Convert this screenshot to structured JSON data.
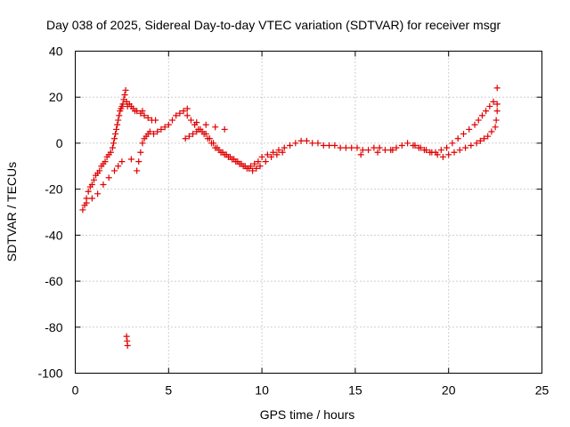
{
  "chart_data": {
    "type": "scatter",
    "title": "Day 038 of 2025, Sidereal Day-to-day VTEC variation (SDTVAR) for receiver msgr",
    "xlabel": "GPS time / hours",
    "ylabel": "SDTVAR / TECUs",
    "xlim": [
      0,
      25
    ],
    "ylim": [
      -100,
      40
    ],
    "xticks": [
      "0",
      "5",
      "10",
      "15",
      "20",
      "25"
    ],
    "yticks": [
      "40",
      "20",
      "0",
      "-20",
      "-40",
      "-60",
      "-80",
      "-100"
    ],
    "grid": true,
    "marker": "+",
    "color": "#e00000",
    "series": [
      {
        "name": "SDTVAR",
        "x": [
          0.4,
          0.5,
          0.6,
          0.7,
          0.8,
          0.9,
          1.0,
          1.1,
          1.2,
          1.3,
          1.4,
          1.5,
          1.6,
          1.7,
          1.8,
          1.9,
          2.0,
          2.05,
          2.1,
          2.15,
          2.2,
          2.25,
          2.3,
          2.35,
          2.4,
          2.45,
          2.5,
          2.55,
          2.6,
          2.65,
          2.7,
          2.75,
          2.8,
          2.9,
          3.0,
          3.1,
          3.2,
          3.3,
          3.4,
          3.5,
          3.6,
          3.7,
          3.8,
          3.9,
          4.0,
          4.2,
          4.4,
          4.6,
          4.8,
          5.0,
          5.2,
          5.4,
          5.6,
          5.8,
          6.0,
          6.2,
          6.4,
          6.6,
          6.8,
          7.0,
          7.2,
          7.4,
          7.6,
          7.8,
          8.0,
          8.2,
          8.4,
          8.6,
          8.8,
          9.0,
          9.2,
          9.4,
          9.6,
          9.8,
          10.0,
          10.3,
          10.6,
          10.9,
          11.2,
          11.5,
          11.8,
          12.1,
          12.4,
          12.7,
          13.0,
          13.3,
          13.6,
          13.9,
          14.2,
          14.5,
          14.8,
          15.1,
          15.4,
          15.7,
          16.0,
          16.3,
          16.6,
          16.9,
          17.2,
          17.5,
          17.8,
          18.1,
          18.4,
          18.7,
          19.0,
          19.3,
          19.6,
          19.9,
          20.2,
          20.5,
          20.8,
          21.1,
          21.4,
          21.6,
          21.8,
          22.0,
          22.2,
          22.4,
          22.6,
          5.9,
          6.1,
          6.3,
          6.5,
          6.7,
          6.9,
          7.1,
          7.3,
          7.5,
          7.7,
          7.9,
          8.1,
          8.3,
          8.5,
          8.7,
          8.9,
          9.1,
          9.3,
          9.5,
          9.7,
          9.9,
          10.2,
          10.5,
          10.8,
          11.1,
          18.2,
          18.5,
          18.8,
          19.1,
          19.4,
          19.7,
          20.0,
          20.3,
          20.6,
          20.9,
          21.2,
          21.5,
          21.7,
          21.9,
          22.1,
          22.3,
          22.5,
          0.6,
          0.9,
          1.2,
          1.5,
          1.8,
          2.1,
          2.3,
          2.5,
          3.3,
          3.5,
          3.7,
          3.9,
          4.1,
          2.75,
          2.78,
          2.8,
          3.0,
          3.6,
          4.3,
          22.6,
          22.55,
          22.6,
          6.0,
          6.5,
          7.0,
          7.5,
          8.0,
          15.3,
          16.2,
          17.0
        ],
        "y": [
          -29,
          -27,
          -24,
          -21,
          -19,
          -18,
          -16,
          -14,
          -13,
          -12,
          -10,
          -9,
          -8,
          -6,
          -5,
          -4,
          -2,
          0,
          2,
          4,
          6,
          8,
          10,
          12,
          14,
          15,
          16,
          17,
          19,
          21,
          23,
          18,
          16,
          17,
          16,
          15,
          14,
          -12,
          -8,
          -4,
          0,
          2,
          3,
          4,
          5,
          4,
          5,
          6,
          7,
          8,
          10,
          12,
          13,
          14,
          12,
          10,
          8,
          6,
          5,
          4,
          2,
          0,
          -2,
          -4,
          -5,
          -6,
          -7,
          -8,
          -9,
          -10,
          -11,
          -10,
          -9,
          -8,
          -6,
          -5,
          -4,
          -3,
          -2,
          -1,
          0,
          1,
          1,
          0,
          0,
          -1,
          -1,
          -1,
          -2,
          -2,
          -2,
          -2,
          -3,
          -3,
          -2,
          -2,
          -3,
          -3,
          -2,
          -1,
          0,
          -1,
          -2,
          -3,
          -4,
          -4,
          -3,
          -2,
          0,
          2,
          4,
          6,
          8,
          10,
          12,
          14,
          16,
          18,
          24,
          2,
          3,
          4,
          5,
          6,
          4,
          2,
          0,
          -2,
          -3,
          -4,
          -5,
          -6,
          -7,
          -8,
          -9,
          -10,
          -11,
          -12,
          -11,
          -10,
          -8,
          -6,
          -5,
          -4,
          -1,
          -2,
          -3,
          -4,
          -5,
          -6,
          -5,
          -4,
          -3,
          -2,
          -1,
          0,
          1,
          2,
          3,
          5,
          7,
          -26,
          -24,
          -22,
          -18,
          -15,
          -12,
          -10,
          -8,
          14,
          13,
          12,
          11,
          10,
          -84,
          -86,
          -88,
          -7,
          14,
          10,
          17,
          10,
          14,
          15,
          9,
          8,
          7,
          6,
          -5,
          -4,
          -3
        ]
      }
    ]
  }
}
